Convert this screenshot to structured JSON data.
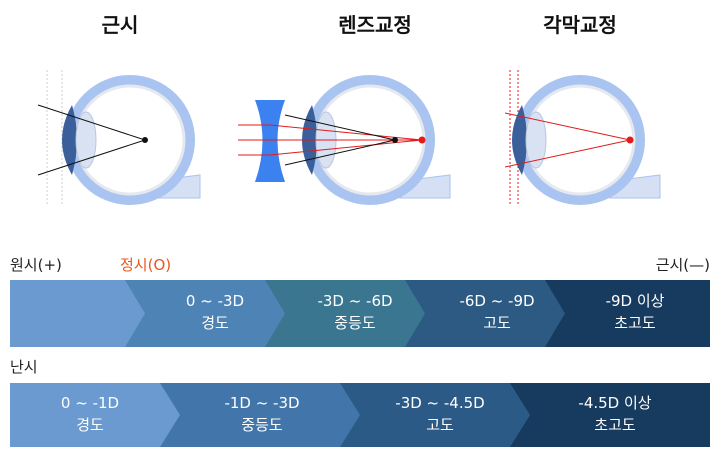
{
  "panels": [
    {
      "title": "근시"
    },
    {
      "title": "렌즈교정"
    },
    {
      "title": "각막교정"
    }
  ],
  "scale": {
    "left": "원시(+)",
    "center": "정시(O)",
    "right": "근시(—)"
  },
  "myopia_bar": {
    "segments": [
      {
        "range": "0 ~ -3D",
        "grade": "경도"
      },
      {
        "range": "-3D ~ -6D",
        "grade": "중등도"
      },
      {
        "range": "-6D ~ -9D",
        "grade": "고도"
      },
      {
        "range": "-9D 이상",
        "grade": "초고도"
      }
    ]
  },
  "astigmatism": {
    "label": "난시",
    "segments": [
      {
        "range": "0 ~ -1D",
        "grade": "경도"
      },
      {
        "range": "-1D ~ -3D",
        "grade": "중등도"
      },
      {
        "range": "-3D ~ -4.5D",
        "grade": "고도"
      },
      {
        "range": "-4.5D 이상",
        "grade": "초고도"
      }
    ]
  }
}
